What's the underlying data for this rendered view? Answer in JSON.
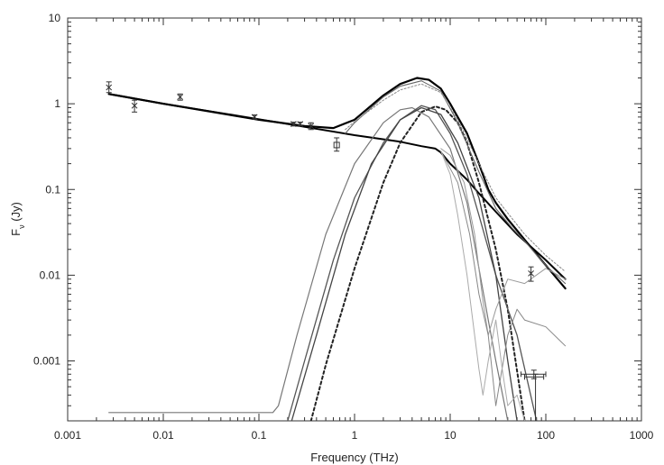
{
  "chart_data": {
    "type": "line",
    "title": "",
    "xlabel": "Frequency (THz)",
    "ylabel_main": "F",
    "ylabel_sub": "ν",
    "ylabel_unit": " (Jy)",
    "xscale": "log",
    "yscale": "log",
    "xlim": [
      0.001,
      1000
    ],
    "ylim": [
      0.0002,
      10
    ],
    "x_tick_labels": [
      "0.001",
      "0.01",
      "0.1",
      "1",
      "10",
      "100",
      "1000"
    ],
    "x_tick_values": [
      0.001,
      0.01,
      0.1,
      1,
      10,
      100,
      1000
    ],
    "y_tick_labels": [
      "0.001",
      "0.01",
      "0.1",
      "1",
      "10"
    ],
    "y_tick_values": [
      0.001,
      0.01,
      0.1,
      1,
      10
    ],
    "grid": false,
    "legend": "none",
    "series": [
      {
        "color": "#000000",
        "width": 2.2,
        "dash": "",
        "x": [
          0.0027,
          0.01,
          0.1,
          0.3,
          0.6,
          1,
          2,
          3,
          4.5,
          6,
          8,
          10,
          15,
          20,
          25,
          30,
          40,
          60,
          90,
          160
        ],
        "y": [
          1.3,
          1.0,
          0.65,
          0.55,
          0.52,
          0.65,
          1.25,
          1.7,
          2.0,
          1.9,
          1.5,
          1.0,
          0.45,
          0.2,
          0.1,
          0.07,
          0.045,
          0.026,
          0.015,
          0.007
        ]
      },
      {
        "color": "#000000",
        "width": 2.0,
        "dash": "",
        "x": [
          0.0027,
          0.01,
          0.1,
          1,
          3,
          5,
          7,
          8,
          10,
          15,
          20,
          30,
          50,
          100,
          160
        ],
        "y": [
          1.3,
          1.0,
          0.66,
          0.43,
          0.36,
          0.32,
          0.3,
          0.27,
          0.2,
          0.13,
          0.09,
          0.055,
          0.03,
          0.015,
          0.009
        ]
      },
      {
        "color": "#222222",
        "width": 2.0,
        "dash": "3,3",
        "x": [
          0.35,
          0.5,
          1,
          2,
          3,
          5,
          7,
          9,
          12,
          15,
          20,
          30,
          40,
          60
        ],
        "y": [
          0.0002,
          0.0009,
          0.012,
          0.12,
          0.35,
          0.8,
          0.93,
          0.85,
          0.6,
          0.35,
          0.12,
          0.02,
          0.004,
          0.0002
        ]
      },
      {
        "color": "#777777",
        "width": 1.2,
        "dash": "",
        "x": [
          0.0027,
          0.1,
          0.14,
          0.16,
          0.25,
          0.5,
          1,
          2,
          3,
          4,
          6,
          10,
          15,
          20,
          25,
          30,
          40
        ],
        "y": [
          0.00025,
          0.00025,
          0.00025,
          0.0003,
          0.002,
          0.03,
          0.2,
          0.6,
          0.85,
          0.9,
          0.7,
          0.3,
          0.07,
          0.012,
          0.003,
          0.001,
          0.0002
        ]
      },
      {
        "color": "#555555",
        "width": 1.3,
        "dash": "",
        "x": [
          0.2,
          0.3,
          0.6,
          1,
          2,
          3,
          5,
          7,
          10,
          15,
          20,
          30,
          50,
          80
        ],
        "y": [
          0.0002,
          0.001,
          0.015,
          0.08,
          0.35,
          0.65,
          0.95,
          0.85,
          0.45,
          0.15,
          0.05,
          0.01,
          0.002,
          0.0002
        ]
      },
      {
        "color": "#444444",
        "width": 1.3,
        "dash": "",
        "x": [
          0.22,
          0.4,
          0.8,
          1.5,
          3,
          5,
          8,
          12,
          20,
          30,
          40,
          50
        ],
        "y": [
          0.0002,
          0.002,
          0.03,
          0.2,
          0.65,
          0.9,
          0.75,
          0.35,
          0.08,
          0.01,
          0.001,
          0.0002
        ]
      },
      {
        "color": "#666666",
        "width": 1.1,
        "dash": "",
        "x": [
          0.8,
          1,
          2,
          3,
          5,
          8,
          12,
          20,
          30,
          45,
          60,
          100,
          160
        ],
        "y": [
          0.45,
          0.6,
          1.2,
          1.6,
          1.85,
          1.4,
          0.6,
          0.16,
          0.06,
          0.035,
          0.025,
          0.013,
          0.008
        ]
      },
      {
        "color": "#888888",
        "width": 1.0,
        "dash": "2,2",
        "x": [
          0.8,
          1,
          2,
          3,
          5,
          8,
          12,
          20,
          30,
          45,
          60,
          100,
          160
        ],
        "y": [
          0.5,
          0.62,
          1.1,
          1.45,
          1.7,
          1.35,
          0.65,
          0.2,
          0.08,
          0.045,
          0.03,
          0.017,
          0.011
        ]
      },
      {
        "color": "#999999",
        "width": 1.0,
        "dash": "",
        "x": [
          8,
          10,
          14,
          18,
          22,
          25,
          30,
          40,
          60,
          100,
          160
        ],
        "y": [
          0.3,
          0.25,
          0.12,
          0.03,
          0.005,
          0.002,
          0.004,
          0.009,
          0.008,
          0.012,
          0.009
        ]
      },
      {
        "color": "#888888",
        "width": 1.0,
        "dash": "",
        "x": [
          8,
          12,
          16,
          20,
          25,
          30,
          40,
          50,
          60,
          100,
          160
        ],
        "y": [
          0.28,
          0.12,
          0.03,
          0.006,
          0.002,
          0.0003,
          0.002,
          0.004,
          0.003,
          0.0025,
          0.0015
        ]
      },
      {
        "color": "#aaaaaa",
        "width": 1.0,
        "dash": "",
        "x": [
          8,
          10,
          12,
          15,
          18,
          20,
          22,
          25,
          30,
          35,
          40,
          50,
          60
        ],
        "y": [
          0.28,
          0.15,
          0.05,
          0.01,
          0.002,
          0.0008,
          0.0004,
          0.001,
          0.003,
          0.0008,
          0.0003,
          0.0004,
          0.0002
        ]
      }
    ],
    "data_points": [
      {
        "x": 0.0027,
        "y": 1.55,
        "yerr_lo": 1.35,
        "yerr_hi": 1.8,
        "marker": "x"
      },
      {
        "x": 0.005,
        "y": 0.95,
        "yerr_lo": 0.8,
        "yerr_hi": 1.1,
        "marker": "x"
      },
      {
        "x": 0.015,
        "y": 1.2,
        "yerr_lo": 1.1,
        "yerr_hi": 1.3,
        "marker": "x"
      },
      {
        "x": 0.09,
        "y": 0.7,
        "yerr_lo": 0.66,
        "yerr_hi": 0.74,
        "marker": "x"
      },
      {
        "x": 0.23,
        "y": 0.58,
        "yerr_lo": 0.55,
        "yerr_hi": 0.61,
        "marker": "x"
      },
      {
        "x": 0.27,
        "y": 0.58,
        "yerr_lo": 0.55,
        "yerr_hi": 0.61,
        "marker": "x"
      },
      {
        "x": 0.35,
        "y": 0.55,
        "yerr_lo": 0.5,
        "yerr_hi": 0.6,
        "marker": "x"
      },
      {
        "x": 0.65,
        "y": 0.33,
        "yerr_lo": 0.28,
        "yerr_hi": 0.4,
        "marker": "square"
      },
      {
        "x": 70,
        "y": 0.0105,
        "yerr_lo": 0.0085,
        "yerr_hi": 0.0125,
        "marker": "x"
      },
      {
        "x": 75,
        "y": 0.0007,
        "yerr_lo": 0.00062,
        "yerr_hi": 0.00078,
        "marker": "bar",
        "xerr_lo": 55,
        "xerr_hi": 100
      },
      {
        "x": 78,
        "y": 0.00065,
        "yerr_lo": 0.0002,
        "yerr_hi": 0.0007,
        "marker": "bar",
        "xerr_lo": 60,
        "xerr_hi": 95
      }
    ]
  }
}
